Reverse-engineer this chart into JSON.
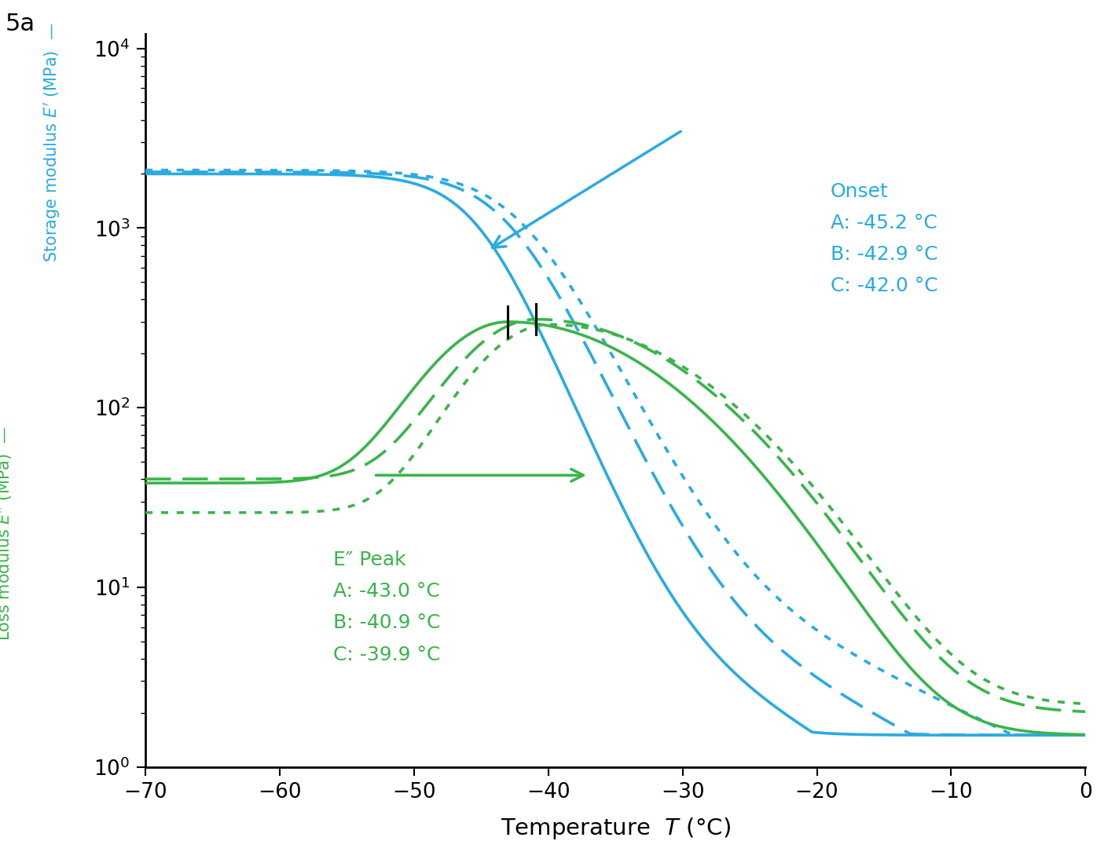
{
  "blue_color": "#29ABE2",
  "green_color": "#39B54A",
  "black_color": "#000000",
  "bg_color": "#ffffff",
  "title": "5a",
  "xlim": [
    -70,
    0
  ],
  "xticks": [
    -70,
    -60,
    -50,
    -40,
    -30,
    -20,
    -10,
    0
  ],
  "yticks": [
    1,
    10,
    100,
    1000,
    10000
  ],
  "onset_label": "Onset",
  "onset_A": "A: -45.2 °C",
  "onset_B": "B: -42.9 °C",
  "onset_C": "C: -42.0 °C",
  "epeak_label": "E″ Peak",
  "epeak_A": "A: -43.0 °C",
  "epeak_B": "B: -40.9 °C",
  "epeak_C": "C: -39.9 °C"
}
